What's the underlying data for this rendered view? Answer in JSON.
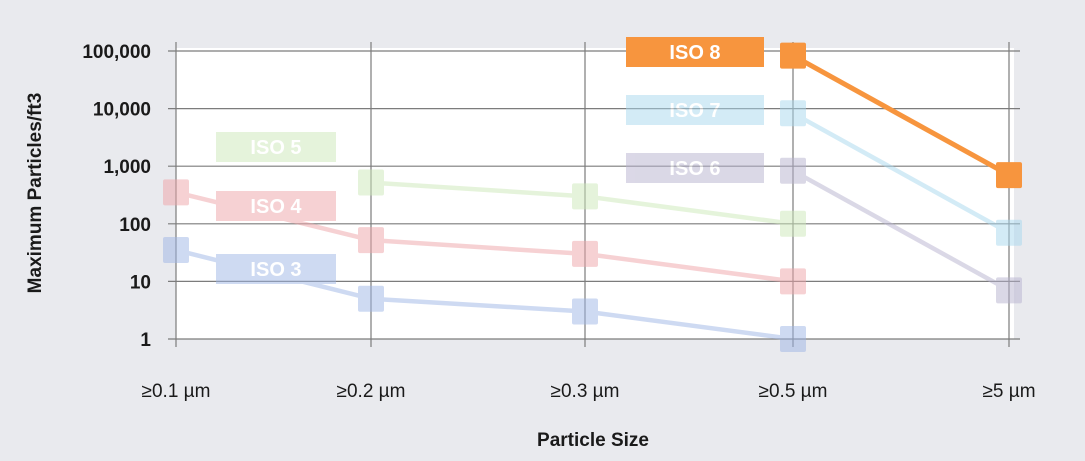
{
  "chart_data": {
    "type": "line",
    "title": "",
    "xlabel": "Particle Size",
    "ylabel": "Maximum Particles/ft3",
    "y_scale": "log",
    "ylim": [
      1,
      100000
    ],
    "y_ticks": [
      {
        "value": 1,
        "label": "1"
      },
      {
        "value": 10,
        "label": "10"
      },
      {
        "value": 100,
        "label": "100"
      },
      {
        "value": 1000,
        "label": "1,000"
      },
      {
        "value": 10000,
        "label": "10,000"
      },
      {
        "value": 100000,
        "label": "100,000"
      }
    ],
    "categories": [
      "≥0.1 µm",
      "≥0.2 µm",
      "≥0.3 µm",
      "≥0.5 µm",
      "≥5 µm"
    ],
    "grid": true,
    "highlighted_series": "ISO 8",
    "series": [
      {
        "name": "ISO 3",
        "color": "#9eb6e6",
        "values": [
          35,
          5,
          3,
          1,
          null
        ]
      },
      {
        "name": "ISO 4",
        "color": "#efa4a8",
        "values": [
          352,
          52,
          30,
          10,
          null
        ]
      },
      {
        "name": "ISO 5",
        "color": "#cce9b8",
        "values": [
          null,
          520,
          300,
          100,
          null
        ]
      },
      {
        "name": "ISO 6",
        "color": "#b7b2cf",
        "values": [
          null,
          null,
          null,
          832,
          7
        ]
      },
      {
        "name": "ISO 7",
        "color": "#a8d8ee",
        "values": [
          null,
          null,
          null,
          8320,
          70
        ]
      },
      {
        "name": "ISO 8",
        "color": "#f7953e",
        "values": [
          null,
          null,
          null,
          83200,
          700
        ]
      }
    ]
  }
}
